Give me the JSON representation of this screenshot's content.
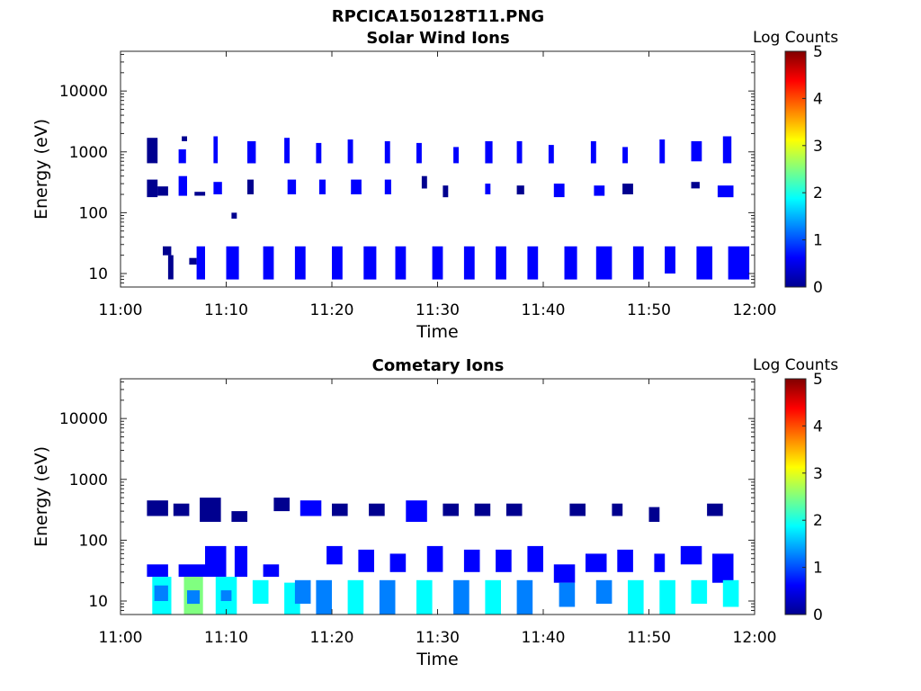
{
  "figure_title": "RPCICA150128T11.PNG",
  "colormap": [
    "#00008f",
    "#0000ff",
    "#0080ff",
    "#00ffff",
    "#80ff80",
    "#ffff00",
    "#ff8000",
    "#ff0000",
    "#800000"
  ],
  "chart_data": [
    {
      "type": "heatmap",
      "title": "Solar Wind Ions",
      "xlabel": "Time",
      "ylabel": "Energy (eV)",
      "x_ticks": [
        "11:00",
        "11:10",
        "11:20",
        "11:30",
        "11:40",
        "11:50",
        "12:00"
      ],
      "x_range_minutes": [
        0,
        60
      ],
      "y_scale": "log",
      "y_ticks": [
        "10",
        "100",
        "1000",
        "10000"
      ],
      "ylim": [
        6,
        45000
      ],
      "colorbar_label": "Log Counts",
      "colorbar_ticks": [
        "0",
        "1",
        "2",
        "3",
        "4",
        "5"
      ],
      "colorbar_range": [
        0,
        5
      ],
      "cells": [
        [
          2.5,
          3.5,
          650,
          1100,
          0.3
        ],
        [
          2.5,
          3.5,
          1100,
          1700,
          0.1
        ],
        [
          2.5,
          3.5,
          180,
          350,
          0.2
        ],
        [
          3.5,
          4.5,
          190,
          270,
          0.3
        ],
        [
          4.0,
          4.8,
          20,
          28,
          0.3
        ],
        [
          4.5,
          5.0,
          8,
          20,
          0.1
        ],
        [
          5.5,
          6.2,
          650,
          1100,
          0.4
        ],
        [
          5.8,
          6.3,
          1500,
          1800,
          0.1
        ],
        [
          5.5,
          6.3,
          190,
          400,
          0.5
        ],
        [
          6.5,
          7.2,
          14,
          18,
          0.2
        ],
        [
          7.2,
          8.0,
          8,
          28,
          0.4
        ],
        [
          7.0,
          8.0,
          190,
          220,
          0.2
        ],
        [
          8.8,
          9.2,
          650,
          1800,
          0.5
        ],
        [
          8.8,
          9.6,
          200,
          320,
          0.4
        ],
        [
          10.0,
          11.2,
          8,
          28,
          0.6
        ],
        [
          10.5,
          11.0,
          80,
          100,
          0.1
        ],
        [
          12.0,
          12.8,
          650,
          1500,
          0.5
        ],
        [
          12.0,
          12.6,
          200,
          350,
          0.3
        ],
        [
          13.5,
          14.5,
          8,
          28,
          0.7
        ],
        [
          15.5,
          16.0,
          650,
          1700,
          0.5
        ],
        [
          15.8,
          16.6,
          200,
          350,
          0.6
        ],
        [
          16.5,
          17.5,
          8,
          28,
          0.6
        ],
        [
          18.5,
          19.0,
          650,
          1400,
          0.6
        ],
        [
          18.8,
          19.4,
          200,
          350,
          0.4
        ],
        [
          20.0,
          21.0,
          8,
          28,
          0.7
        ],
        [
          21.5,
          22.0,
          650,
          1600,
          0.5
        ],
        [
          21.8,
          22.8,
          200,
          350,
          0.5
        ],
        [
          23.0,
          24.2,
          8,
          28,
          0.8
        ],
        [
          25.0,
          25.5,
          650,
          1500,
          0.7
        ],
        [
          25.0,
          25.6,
          200,
          350,
          0.4
        ],
        [
          26.0,
          27.0,
          8,
          28,
          0.7
        ],
        [
          28.0,
          28.5,
          650,
          1400,
          0.5
        ],
        [
          28.5,
          29.0,
          250,
          400,
          0.3
        ],
        [
          29.5,
          30.5,
          8,
          28,
          0.7
        ],
        [
          30.5,
          31.0,
          180,
          280,
          0.3
        ],
        [
          31.5,
          32.0,
          650,
          1200,
          0.4
        ],
        [
          32.5,
          33.5,
          8,
          28,
          0.8
        ],
        [
          34.5,
          35.2,
          650,
          1500,
          0.7
        ],
        [
          34.5,
          35.0,
          200,
          300,
          0.4
        ],
        [
          35.5,
          36.5,
          8,
          28,
          0.7
        ],
        [
          37.5,
          38.0,
          650,
          1500,
          0.8
        ],
        [
          37.5,
          38.2,
          200,
          280,
          0.3
        ],
        [
          38.5,
          39.5,
          8,
          28,
          0.8
        ],
        [
          40.5,
          41.0,
          650,
          1300,
          0.5
        ],
        [
          41.0,
          42.0,
          180,
          300,
          0.6
        ],
        [
          42.0,
          43.2,
          8,
          28,
          0.7
        ],
        [
          44.5,
          45.0,
          650,
          1500,
          0.6
        ],
        [
          44.8,
          45.8,
          190,
          280,
          0.4
        ],
        [
          45.0,
          46.5,
          8,
          28,
          0.6
        ],
        [
          47.5,
          48.0,
          650,
          1200,
          0.4
        ],
        [
          47.5,
          48.5,
          200,
          300,
          0.3
        ],
        [
          48.5,
          49.5,
          8,
          28,
          0.6
        ],
        [
          51.0,
          51.5,
          650,
          1600,
          0.5
        ],
        [
          51.5,
          52.5,
          10,
          28,
          0.7
        ],
        [
          54.0,
          55.0,
          700,
          1500,
          0.6
        ],
        [
          54.0,
          54.8,
          250,
          320,
          0.3
        ],
        [
          54.5,
          56.0,
          8,
          28,
          0.8
        ],
        [
          57.0,
          57.8,
          650,
          1800,
          0.6
        ],
        [
          56.5,
          58.0,
          180,
          280,
          0.4
        ],
        [
          57.5,
          59.5,
          8,
          28,
          0.5
        ]
      ]
    },
    {
      "type": "heatmap",
      "title": "Cometary Ions",
      "xlabel": "Time",
      "ylabel": "Energy (eV)",
      "x_ticks": [
        "11:00",
        "11:10",
        "11:20",
        "11:30",
        "11:40",
        "11:50",
        "12:00"
      ],
      "x_range_minutes": [
        0,
        60
      ],
      "y_scale": "log",
      "y_ticks": [
        "10",
        "100",
        "1000",
        "10000"
      ],
      "ylim": [
        6,
        45000
      ],
      "colorbar_label": "Log Counts",
      "colorbar_ticks": [
        "0",
        "1",
        "2",
        "3",
        "4",
        "5"
      ],
      "colorbar_range": [
        0,
        5
      ],
      "cells": [
        [
          2.5,
          4.5,
          250,
          450,
          0.2
        ],
        [
          2.5,
          4.5,
          25,
          40,
          0.4
        ],
        [
          3.0,
          4.8,
          6,
          25,
          2.0
        ],
        [
          3.2,
          4.5,
          10,
          18,
          1.3
        ],
        [
          5.0,
          6.5,
          250,
          400,
          0.3
        ],
        [
          5.5,
          8.0,
          25,
          40,
          0.4
        ],
        [
          6.0,
          7.8,
          6,
          25,
          2.2
        ],
        [
          6.3,
          7.5,
          9,
          15,
          1.2
        ],
        [
          7.5,
          9.5,
          200,
          500,
          0.3
        ],
        [
          8.0,
          10.0,
          25,
          80,
          0.5
        ],
        [
          9.0,
          11.0,
          6,
          25,
          1.8
        ],
        [
          9.5,
          10.5,
          10,
          15,
          1.0
        ],
        [
          10.5,
          12.0,
          200,
          300,
          0.3
        ],
        [
          10.8,
          12.0,
          25,
          80,
          0.6
        ],
        [
          12.5,
          14.0,
          9,
          22,
          1.9
        ],
        [
          13.5,
          15.0,
          25,
          40,
          0.4
        ],
        [
          14.5,
          16.0,
          300,
          500,
          0.3
        ],
        [
          15.5,
          17.0,
          6,
          20,
          1.6
        ],
        [
          16.5,
          18.0,
          9,
          22,
          1.5
        ],
        [
          17.0,
          19.0,
          250,
          450,
          0.4
        ],
        [
          18.5,
          20.0,
          6,
          22,
          1.5
        ],
        [
          19.5,
          21.0,
          40,
          80,
          0.6
        ],
        [
          20.0,
          21.5,
          250,
          400,
          0.3
        ],
        [
          21.5,
          23.0,
          6,
          22,
          1.6
        ],
        [
          22.5,
          24.0,
          30,
          70,
          0.6
        ],
        [
          23.5,
          25.0,
          250,
          400,
          0.3
        ],
        [
          24.5,
          26.0,
          6,
          22,
          1.5
        ],
        [
          25.5,
          27.0,
          30,
          60,
          0.6
        ],
        [
          27.0,
          29.0,
          200,
          450,
          0.4
        ],
        [
          28.0,
          29.5,
          6,
          22,
          1.6
        ],
        [
          29.0,
          30.5,
          30,
          80,
          0.6
        ],
        [
          30.5,
          32.0,
          250,
          400,
          0.3
        ],
        [
          31.5,
          33.0,
          6,
          22,
          1.5
        ],
        [
          32.5,
          34.0,
          30,
          70,
          0.6
        ],
        [
          33.5,
          35.0,
          250,
          400,
          0.3
        ],
        [
          34.5,
          36.0,
          6,
          22,
          1.6
        ],
        [
          35.5,
          37.0,
          30,
          70,
          0.6
        ],
        [
          36.5,
          38.0,
          250,
          400,
          0.3
        ],
        [
          37.5,
          39.0,
          6,
          22,
          1.5
        ],
        [
          38.5,
          40.0,
          30,
          80,
          0.6
        ],
        [
          41.0,
          43.0,
          20,
          40,
          0.5
        ],
        [
          41.5,
          43.0,
          8,
          20,
          1.4
        ],
        [
          42.5,
          44.0,
          250,
          400,
          0.3
        ],
        [
          44.0,
          46.0,
          30,
          60,
          0.6
        ],
        [
          45.0,
          46.5,
          9,
          22,
          1.5
        ],
        [
          46.5,
          47.5,
          250,
          400,
          0.3
        ],
        [
          47.0,
          48.5,
          30,
          70,
          0.6
        ],
        [
          48.0,
          49.5,
          6,
          22,
          1.6
        ],
        [
          50.0,
          51.0,
          200,
          350,
          0.3
        ],
        [
          50.5,
          51.5,
          30,
          60,
          0.5
        ],
        [
          51.0,
          52.5,
          6,
          22,
          1.6
        ],
        [
          53.0,
          55.0,
          40,
          80,
          0.5
        ],
        [
          54.0,
          55.5,
          9,
          22,
          1.6
        ],
        [
          55.5,
          57.0,
          250,
          400,
          0.3
        ],
        [
          56.0,
          58.0,
          20,
          60,
          0.6
        ],
        [
          57.0,
          58.5,
          8,
          22,
          1.7
        ]
      ]
    }
  ]
}
